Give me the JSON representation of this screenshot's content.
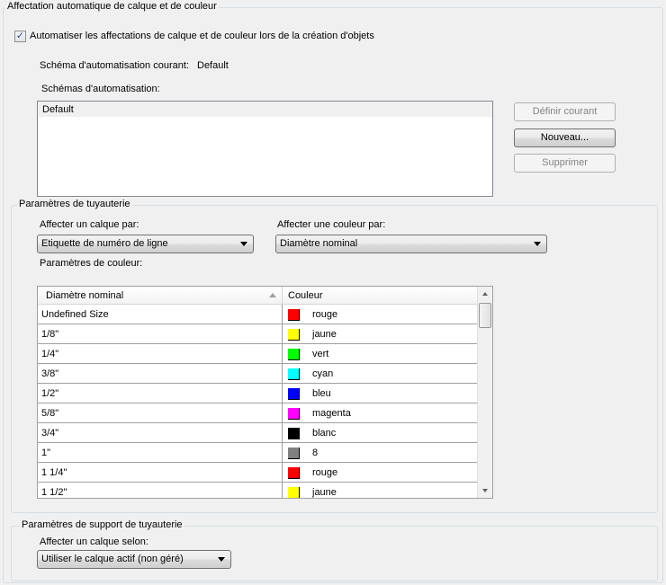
{
  "auto_group": {
    "title": "Affectation automatique de calque et de couleur",
    "checkbox_label": "Automatiser les affectations de calque et de couleur lors de la création d'objets",
    "checked": true,
    "current_scheme_label": "Schéma d'automatisation courant:",
    "current_scheme_value": "Default",
    "schemes_label": "Schémas d'automatisation:",
    "schemes": [
      "Default"
    ],
    "buttons": {
      "set_current": "Définir courant",
      "new": "Nouveau...",
      "delete": "Supprimer"
    }
  },
  "piping_group": {
    "title": "Paramètres de tuyauterie",
    "layer_label": "Affecter un calque par:",
    "layer_value": "Etiquette de numéro de ligne",
    "color_label": "Affecter une couleur par:",
    "color_value": "Diamètre nominal",
    "color_settings_label": "Paramètres de couleur:",
    "grid": {
      "headers": [
        "Diamètre nominal",
        "Couleur"
      ],
      "rows": [
        {
          "size": "Undefined Size",
          "color": "rouge",
          "hex": "#ff0000"
        },
        {
          "size": "1/8\"",
          "color": "jaune",
          "hex": "#ffff00"
        },
        {
          "size": "1/4\"",
          "color": "vert",
          "hex": "#00ff00"
        },
        {
          "size": "3/8\"",
          "color": "cyan",
          "hex": "#00ffff"
        },
        {
          "size": "1/2\"",
          "color": "bleu",
          "hex": "#0000ff"
        },
        {
          "size": "5/8\"",
          "color": "magenta",
          "hex": "#ff00ff"
        },
        {
          "size": "3/4\"",
          "color": "blanc",
          "hex": "#000000"
        },
        {
          "size": "1\"",
          "color": "8",
          "hex": "#808080"
        },
        {
          "size": "1 1/4\"",
          "color": "rouge",
          "hex": "#ff0000"
        },
        {
          "size": "1 1/2\"",
          "color": "jaune",
          "hex": "#ffff00"
        }
      ]
    }
  },
  "support_group": {
    "title": "Paramètres de support de tuyauterie",
    "layer_label": "Affecter un calque selon:",
    "layer_value": "Utiliser le calque actif (non géré)"
  }
}
